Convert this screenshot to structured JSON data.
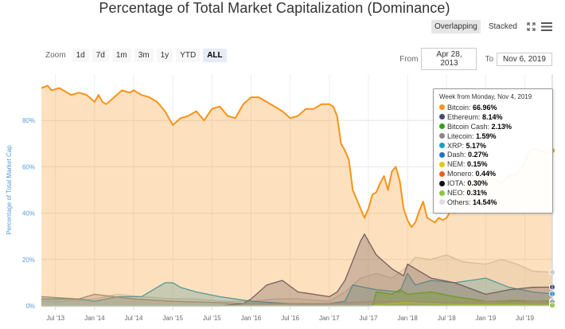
{
  "header": {
    "title": "Percentage of Total Market Capitalization (Dominance)"
  },
  "view_toggle": {
    "overlapping": "Overlapping",
    "stacked": "Stacked",
    "active": "overlapping"
  },
  "icons": {
    "fullscreen": "fullscreen-icon",
    "menu": "hamburger-menu-icon"
  },
  "zoom": {
    "label": "Zoom",
    "buttons": [
      "1d",
      "7d",
      "1m",
      "3m",
      "1y",
      "YTD",
      "ALL"
    ],
    "selected": "ALL"
  },
  "range": {
    "from_label": "From",
    "from_value": "Apr 28, 2013",
    "to_label": "To",
    "to_value": "Nov 6, 2019"
  },
  "tooltip": {
    "header": "Week from Monday, Nov 4, 2019",
    "items": [
      {
        "name": "Bitcoin",
        "value": "66.96%",
        "color": "#f7931a"
      },
      {
        "name": "Ethereum",
        "value": "8.14%",
        "color": "#454a75"
      },
      {
        "name": "Bitcoin Cash",
        "value": "2.13%",
        "color": "#3b9c1d"
      },
      {
        "name": "Litecoin",
        "value": "1.59%",
        "color": "#888888"
      },
      {
        "name": "XRP",
        "value": "5.17%",
        "color": "#1c9cc9"
      },
      {
        "name": "Dash",
        "value": "0.27%",
        "color": "#1e73be"
      },
      {
        "name": "NEM",
        "value": "0.15%",
        "color": "#e8c41a"
      },
      {
        "name": "Monero",
        "value": "0.44%",
        "color": "#f15a24"
      },
      {
        "name": "IOTA",
        "value": "0.30%",
        "color": "#111111"
      },
      {
        "name": "NEO",
        "value": "0.31%",
        "color": "#8dc63f"
      },
      {
        "name": "Others",
        "value": "14.54%",
        "color": "#dddddd"
      }
    ]
  },
  "chart_data": {
    "type": "area",
    "title": "Percentage of Total Market Capitalization (Dominance)",
    "ylabel": "Percentage of Total Market Cap",
    "xlabel": "",
    "ylim": [
      0,
      100
    ],
    "y_ticks": [
      "0%",
      "20%",
      "40%",
      "60%",
      "80%"
    ],
    "y_tick_values": [
      0,
      20,
      40,
      60,
      80
    ],
    "x_ticks": [
      "Jul '13",
      "Jan '14",
      "Jul '14",
      "Jan '15",
      "Jul '15",
      "Jan '16",
      "Jul '16",
      "Jan '17",
      "Jul '17",
      "Jan '18",
      "Jul '18",
      "Jan '19",
      "Jul '19"
    ],
    "x_tick_values": [
      2013.5,
      2014.0,
      2014.5,
      2015.0,
      2015.5,
      2016.0,
      2016.5,
      2017.0,
      2017.5,
      2018.0,
      2018.5,
      2019.0,
      2019.5
    ],
    "xlim": [
      2013.32,
      2019.85
    ],
    "grid": true,
    "series": [
      {
        "name": "Others",
        "color": "#cccccc",
        "x": [
          2013.32,
          2013.6,
          2014.0,
          2014.3,
          2014.6,
          2015.0,
          2015.3,
          2015.6,
          2016.0,
          2016.3,
          2016.6,
          2017.0,
          2017.2,
          2017.4,
          2017.6,
          2017.8,
          2018.0,
          2018.1,
          2018.3,
          2018.5,
          2018.7,
          2019.0,
          2019.2,
          2019.4,
          2019.6,
          2019.85
        ],
        "y": [
          2,
          2,
          3,
          5,
          4,
          3,
          3,
          2,
          2,
          3,
          3,
          2,
          6,
          12,
          14,
          12,
          17,
          21,
          20,
          22,
          19,
          18,
          20,
          18,
          15,
          14.5
        ]
      },
      {
        "name": "XRP",
        "color": "#1c9cc9",
        "x": [
          2013.32,
          2013.8,
          2014.0,
          2014.3,
          2014.6,
          2014.8,
          2014.9,
          2015.0,
          2015.1,
          2015.3,
          2015.6,
          2015.8,
          2016.0,
          2016.5,
          2017.0,
          2017.2,
          2017.3,
          2017.6,
          2017.9,
          2018.0,
          2018.1,
          2018.3,
          2018.6,
          2019.0,
          2019.3,
          2019.6,
          2019.85
        ],
        "y": [
          3,
          3,
          2,
          4,
          4,
          8,
          10,
          10,
          8,
          6,
          4,
          3,
          2,
          1,
          1,
          2,
          9,
          7,
          6,
          14,
          9,
          11,
          10,
          12,
          8,
          6,
          5.2
        ]
      },
      {
        "name": "Ethereum",
        "color": "#454a75",
        "x": [
          2013.32,
          2015.6,
          2015.9,
          2016.0,
          2016.2,
          2016.4,
          2016.6,
          2016.8,
          2017.0,
          2017.1,
          2017.2,
          2017.4,
          2017.45,
          2017.6,
          2017.8,
          2017.95,
          2018.0,
          2018.3,
          2018.6,
          2019.0,
          2019.3,
          2019.6,
          2019.85
        ],
        "y": [
          0,
          0,
          1,
          3,
          9,
          11,
          6,
          5,
          4,
          6,
          11,
          28,
          31,
          22,
          16,
          13,
          18,
          12,
          10,
          5,
          7,
          8,
          8.1
        ]
      },
      {
        "name": "Bitcoin Cash",
        "color": "#3b9c1d",
        "x": [
          2013.32,
          2017.55,
          2017.6,
          2017.8,
          2017.9,
          2018.0,
          2018.3,
          2018.6,
          2019.0,
          2019.5,
          2019.85
        ],
        "y": [
          0,
          0,
          6,
          5,
          7,
          5,
          6,
          4,
          2,
          2,
          2.1
        ]
      },
      {
        "name": "Litecoin",
        "color": "#888888",
        "x": [
          2013.32,
          2013.8,
          2014.0,
          2014.5,
          2015.0,
          2016.0,
          2017.0,
          2017.6,
          2018.0,
          2018.5,
          2019.0,
          2019.4,
          2019.85
        ],
        "y": [
          4,
          3,
          5,
          3,
          2,
          1,
          1,
          2,
          2,
          1.5,
          2,
          2.5,
          1.6
        ]
      },
      {
        "name": "NEO",
        "color": "#8dc63f",
        "x": [
          2013.32,
          2017.5,
          2017.8,
          2018.0,
          2018.2,
          2018.6,
          2019.85
        ],
        "y": [
          0,
          0,
          1,
          1.5,
          1,
          0.5,
          0.3
        ]
      },
      {
        "name": "Bitcoin",
        "color": "#f7931a",
        "x": [
          2013.32,
          2013.4,
          2013.45,
          2013.55,
          2013.6,
          2013.7,
          2013.8,
          2013.9,
          2014.0,
          2014.05,
          2014.1,
          2014.15,
          2014.25,
          2014.35,
          2014.45,
          2014.5,
          2014.6,
          2014.7,
          2014.8,
          2014.9,
          2015.0,
          2015.1,
          2015.2,
          2015.3,
          2015.4,
          2015.5,
          2015.6,
          2015.7,
          2015.8,
          2015.9,
          2016.0,
          2016.1,
          2016.2,
          2016.3,
          2016.4,
          2016.5,
          2016.6,
          2016.7,
          2016.8,
          2016.9,
          2017.0,
          2017.05,
          2017.1,
          2017.15,
          2017.2,
          2017.25,
          2017.3,
          2017.35,
          2017.4,
          2017.45,
          2017.5,
          2017.55,
          2017.6,
          2017.65,
          2017.7,
          2017.75,
          2017.8,
          2017.85,
          2017.9,
          2017.95,
          2018.0,
          2018.05,
          2018.1,
          2018.15,
          2018.2,
          2018.25,
          2018.3,
          2018.35,
          2018.4,
          2018.45,
          2018.5,
          2018.55,
          2018.6,
          2018.65,
          2018.7,
          2018.75,
          2018.8,
          2018.85,
          2018.9,
          2018.95,
          2019.0,
          2019.1,
          2019.2,
          2019.3,
          2019.4,
          2019.5,
          2019.55,
          2019.6,
          2019.7,
          2019.8,
          2019.85
        ],
        "y": [
          94,
          95,
          93,
          94,
          93,
          91,
          92,
          91,
          88,
          91,
          88,
          87,
          90,
          93,
          92,
          93,
          91,
          90,
          88,
          84,
          78,
          81,
          82,
          84,
          80,
          85,
          86,
          82,
          81,
          87,
          90,
          90,
          88,
          86,
          84,
          81,
          82,
          85,
          85,
          87,
          87,
          86,
          82,
          70,
          67,
          63,
          50,
          46,
          42,
          38,
          42,
          48,
          49,
          53,
          56,
          50,
          58,
          60,
          54,
          42,
          37,
          34,
          36,
          41,
          45,
          38,
          37,
          36,
          38,
          37,
          38,
          41,
          40,
          43,
          48,
          52,
          53,
          55,
          52,
          53,
          54,
          55,
          53,
          56,
          57,
          62,
          66,
          68,
          67,
          66,
          67
        ]
      }
    ]
  }
}
